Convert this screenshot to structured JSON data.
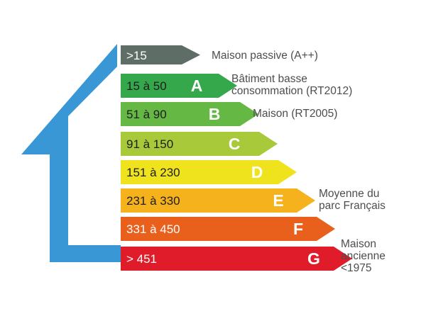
{
  "house": {
    "color": "#3a97d6"
  },
  "classes": [
    {
      "range": "&gt;15",
      "letter": "",
      "color": "#5f6d67",
      "text_color": "#ffffff"
    },
    {
      "range": "15 à 50",
      "letter": "A",
      "color": "#36a84c",
      "text_color": "#1e1e1e"
    },
    {
      "range": "51 à 90",
      "letter": "B",
      "color": "#65b843",
      "text_color": "#1e1e1e"
    },
    {
      "range": "91 à 150",
      "letter": "C",
      "color": "#a7c93a",
      "text_color": "#1e1e1e"
    },
    {
      "range": "151 à 230",
      "letter": "D",
      "color": "#eee31c",
      "text_color": "#1e1e1e"
    },
    {
      "range": "231 à 330",
      "letter": "E",
      "color": "#f6b21d",
      "text_color": "#1e1e1e"
    },
    {
      "range": "331 à 450",
      "letter": "F",
      "color": "#e9601d",
      "text_color": "#ffffff"
    },
    {
      "range": "&gt; 451",
      "letter": "G",
      "color": "#e11c2a",
      "text_color": "#ffffff"
    }
  ],
  "notes": [
    {
      "text": "Maison passive (A++)"
    },
    {
      "text": "Bâtiment basse\nconsommation (RT2012)"
    },
    {
      "text": "Maison (RT2005)"
    },
    {
      "text": "Moyenne du\nparc Français"
    },
    {
      "text": "Maison\nancienne\n<1975"
    }
  ]
}
